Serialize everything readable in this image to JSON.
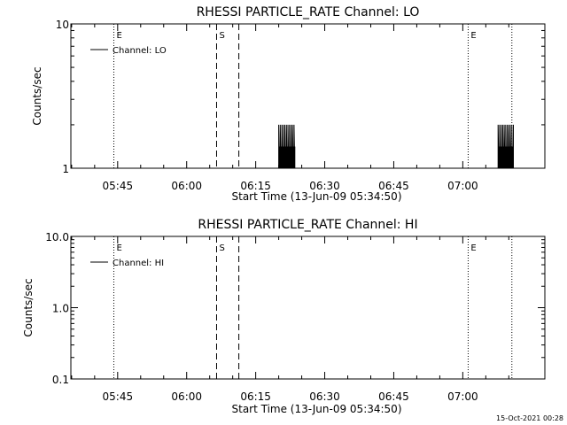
{
  "footer_timestamp": "15-Oct-2021 00:28",
  "chart_data": [
    {
      "type": "line",
      "title": "RHESSI PARTICLE_RATE Channel: LO",
      "xlabel": "Start Time (13-Jun-09 05:34:50)",
      "ylabel": "Counts/sec",
      "yscale": "log",
      "ylim": [
        1,
        10
      ],
      "ytick_values": [
        1,
        10
      ],
      "ytick_labels": [
        "1",
        "10"
      ],
      "xlim": [
        "05:34:50",
        "07:17:50"
      ],
      "xtick_labels": [
        "05:45",
        "06:00",
        "06:15",
        "06:30",
        "06:45",
        "07:00"
      ],
      "legend": {
        "placement": "top-left",
        "entries": [
          "Channel: LO"
        ]
      },
      "markers": [
        {
          "time": "05:44:10",
          "style": "dotted",
          "label": "E"
        },
        {
          "time": "06:06:30",
          "style": "dashed",
          "label": "S"
        },
        {
          "time": "06:11:20",
          "style": "dashed",
          "label": ""
        },
        {
          "time": "07:01:10",
          "style": "dotted",
          "label": "E"
        },
        {
          "time": "07:10:40",
          "style": "dotted",
          "label": ""
        }
      ],
      "series": [
        {
          "name": "Channel: LO",
          "bursts": [
            {
              "start": "06:20:00",
              "end": "06:23:30",
              "low": 1,
              "high": 2
            },
            {
              "start": "07:07:40",
              "end": "07:11:00",
              "low": 1,
              "high": 2
            }
          ]
        }
      ]
    },
    {
      "type": "line",
      "title": "RHESSI PARTICLE_RATE Channel: HI",
      "xlabel": "Start Time (13-Jun-09 05:34:50)",
      "ylabel": "Counts/sec",
      "yscale": "log",
      "ylim": [
        0.1,
        10
      ],
      "ytick_values": [
        0.1,
        1,
        10
      ],
      "ytick_labels": [
        "0.1",
        "1.0",
        "10.0"
      ],
      "xlim": [
        "05:34:50",
        "07:17:50"
      ],
      "xtick_labels": [
        "05:45",
        "06:00",
        "06:15",
        "06:30",
        "06:45",
        "07:00"
      ],
      "legend": {
        "placement": "top-left",
        "entries": [
          "Channel: HI"
        ]
      },
      "markers": [
        {
          "time": "05:44:10",
          "style": "dotted",
          "label": "E"
        },
        {
          "time": "06:06:30",
          "style": "dashed",
          "label": "S"
        },
        {
          "time": "06:11:20",
          "style": "dashed",
          "label": ""
        },
        {
          "time": "07:01:10",
          "style": "dotted",
          "label": "E"
        },
        {
          "time": "07:10:40",
          "style": "dotted",
          "label": ""
        }
      ],
      "series": [
        {
          "name": "Channel: HI",
          "bursts": []
        }
      ]
    }
  ]
}
